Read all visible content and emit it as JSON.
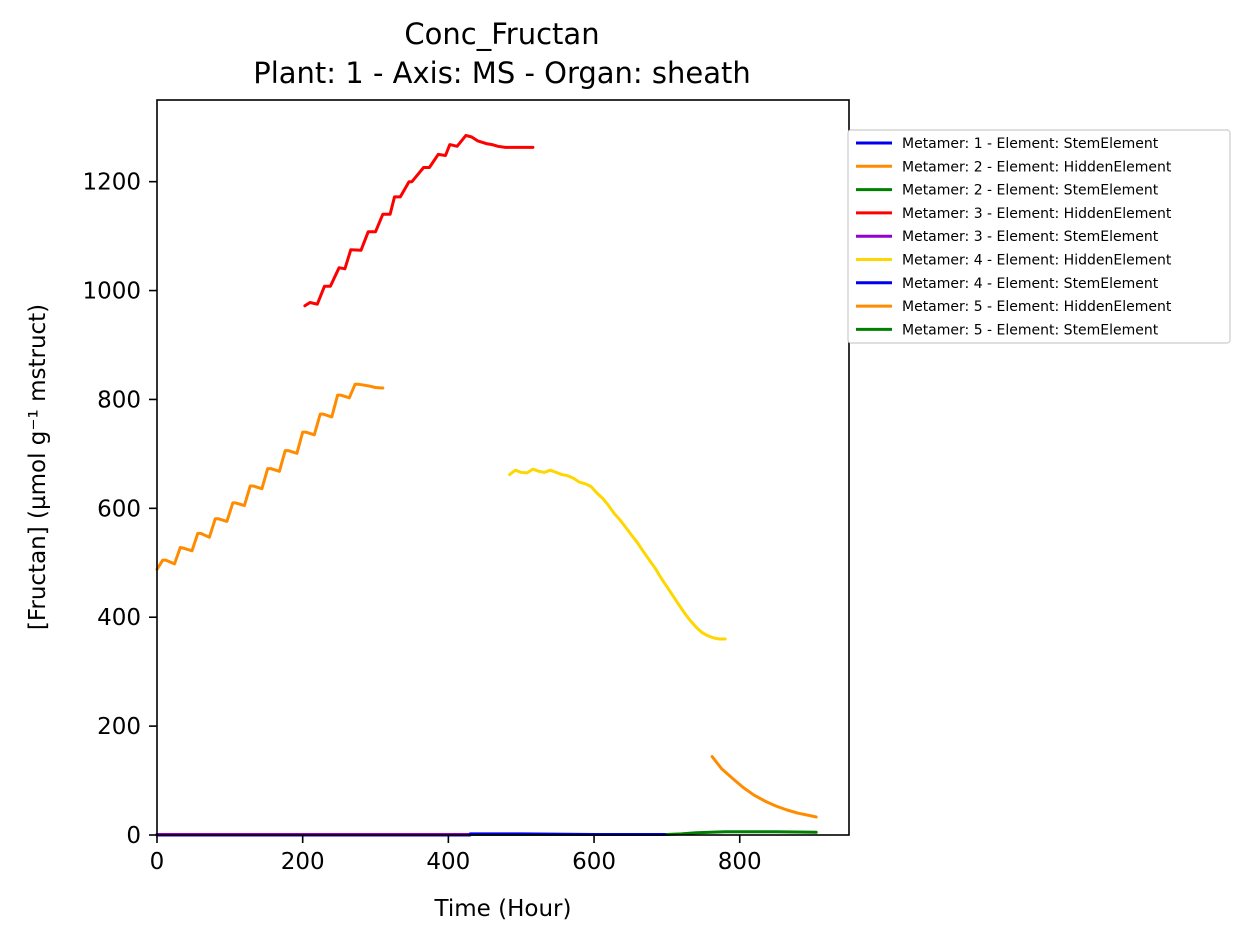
{
  "chart_data": {
    "type": "line",
    "title": "Conc_Fructan",
    "subtitle": "Plant: 1 - Axis: MS - Organ: sheath",
    "xlabel": "Time (Hour)",
    "ylabel": "[Fructan] (µmol g⁻¹ mstruct)",
    "xlim": [
      0,
      950
    ],
    "ylim": [
      0,
      1350
    ],
    "xticks": [
      0,
      200,
      400,
      600,
      800
    ],
    "yticks": [
      0,
      200,
      400,
      600,
      800,
      1000,
      1200
    ],
    "grid": false,
    "legend_position": "outside-right",
    "series": [
      {
        "name": "Metamer: 1 - Element: StemElement",
        "color": "#0000ee",
        "x": [
          0,
          100,
          200,
          300,
          400,
          430
        ],
        "y": [
          0,
          0,
          0,
          0,
          0,
          0
        ]
      },
      {
        "name": "Metamer: 2 - Element: HiddenElement",
        "color": "#ff8c00",
        "x": [
          0,
          8,
          12,
          24,
          32,
          36,
          48,
          56,
          60,
          72,
          80,
          84,
          96,
          104,
          108,
          120,
          128,
          132,
          144,
          152,
          156,
          168,
          176,
          180,
          192,
          200,
          204,
          216,
          224,
          228,
          240,
          248,
          252,
          264,
          272,
          276,
          290,
          300,
          310
        ],
        "y": [
          488,
          505,
          505,
          498,
          528,
          527,
          522,
          554,
          554,
          547,
          581,
          581,
          576,
          610,
          610,
          605,
          641,
          641,
          636,
          673,
          673,
          668,
          706,
          706,
          701,
          740,
          740,
          735,
          773,
          773,
          768,
          808,
          808,
          803,
          828,
          828,
          825,
          822,
          821
        ]
      },
      {
        "name": "Metamer: 2 - Element: StemElement",
        "color": "#008000",
        "x": [
          0,
          200,
          400,
          600,
          700
        ],
        "y": [
          1,
          1,
          1,
          1,
          1
        ]
      },
      {
        "name": "Metamer: 3 - Element: HiddenElement",
        "color": "#ff0000",
        "x": [
          203,
          210,
          220,
          230,
          238,
          250,
          258,
          266,
          280,
          290,
          300,
          310,
          320,
          326,
          334,
          346,
          350,
          366,
          374,
          386,
          396,
          402,
          412,
          424,
          432,
          440,
          452,
          460,
          468,
          478,
          486,
          496,
          506,
          516
        ],
        "y": [
          972,
          978,
          975,
          1008,
          1008,
          1042,
          1040,
          1075,
          1074,
          1108,
          1108,
          1140,
          1140,
          1172,
          1172,
          1200,
          1200,
          1226,
          1226,
          1250,
          1248,
          1268,
          1265,
          1285,
          1282,
          1275,
          1270,
          1268,
          1265,
          1263,
          1263,
          1263,
          1263,
          1263
        ]
      },
      {
        "name": "Metamer: 3 - Element: StemElement",
        "color": "#9400d3",
        "x": [
          0,
          200,
          400,
          430
        ],
        "y": [
          1,
          1,
          1,
          1
        ]
      },
      {
        "name": "Metamer: 4 - Element: HiddenElement",
        "color": "#ffd700",
        "x": [
          484,
          492,
          500,
          508,
          516,
          524,
          532,
          540,
          548,
          556,
          564,
          572,
          580,
          588,
          596,
          604,
          612,
          620,
          628,
          636,
          644,
          652,
          660,
          668,
          676,
          684,
          692,
          700,
          708,
          716,
          724,
          732,
          740,
          748,
          756,
          764,
          772,
          780
        ],
        "y": [
          662,
          670,
          666,
          665,
          672,
          668,
          666,
          670,
          666,
          662,
          660,
          655,
          648,
          645,
          640,
          628,
          618,
          605,
          590,
          578,
          564,
          550,
          536,
          520,
          505,
          490,
          472,
          456,
          440,
          424,
          408,
          394,
          382,
          372,
          366,
          362,
          360,
          360
        ]
      },
      {
        "name": "Metamer: 4 - Element: StemElement",
        "color": "#0000ee",
        "x": [
          430,
          500,
          600,
          700
        ],
        "y": [
          2,
          2,
          1,
          1
        ]
      },
      {
        "name": "Metamer: 5 - Element: HiddenElement",
        "color": "#ff8c00",
        "x": [
          762,
          775,
          790,
          805,
          820,
          835,
          850,
          865,
          880,
          895,
          905
        ],
        "y": [
          144,
          122,
          104,
          87,
          73,
          62,
          53,
          46,
          40,
          36,
          33
        ]
      },
      {
        "name": "Metamer: 5 - Element: StemElement",
        "color": "#008000",
        "x": [
          700,
          720,
          740,
          760,
          780,
          800,
          850,
          905
        ],
        "y": [
          1,
          2,
          4,
          5,
          6,
          6,
          6,
          5
        ]
      }
    ]
  }
}
